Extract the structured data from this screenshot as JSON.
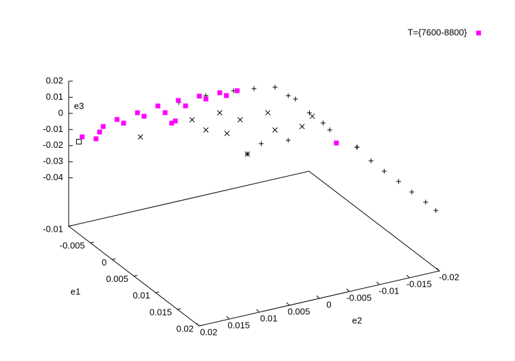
{
  "chart_data": {
    "type": "scatter3d",
    "xlabel": "e1",
    "ylabel": "e2",
    "zlabel": "e3",
    "xlim": [
      -0.01,
      0.02
    ],
    "xticks": [
      -0.01,
      -0.005,
      0,
      0.005,
      0.01,
      0.015,
      0.02
    ],
    "ylim": [
      -0.02,
      0.02
    ],
    "yticks": [
      0.02,
      0.015,
      0.01,
      0.005,
      0,
      -0.005,
      -0.01,
      -0.015,
      -0.02
    ],
    "zlim": [
      -0.07,
      0.02
    ],
    "zticks": [
      0.02,
      0.01,
      0,
      -0.01,
      -0.02,
      -0.03,
      -0.04
    ],
    "legend": "top-right",
    "series": [
      {
        "color": "#000000",
        "marker": "plus",
        "x": [
          -0.004,
          -0.004,
          -0.004,
          -0.004,
          -0.004,
          -0.004,
          -0.004,
          -0.004,
          -0.004,
          -0.004,
          0.005,
          0.005,
          0.005,
          0.02,
          0.02,
          0.02,
          0.02,
          0.02,
          0.02,
          0.02,
          0.005
        ],
        "y": [
          -0.01,
          -0.0065,
          -0.0031,
          0.0015,
          0.006,
          -0.0134,
          -0.0054,
          -0.0077,
          -0.0122,
          -0.018,
          -0.0092,
          -0.0057,
          -0.0126,
          -0.0194,
          -0.0154,
          -0.0108,
          -0.0132,
          -0.0177,
          -0.0086,
          -0.0063,
          -0.0171
        ],
        "z": [
          0.003,
          0.0051,
          0.0067,
          0.0076,
          0.0072,
          -0.0072,
          -0.0345,
          -0.03,
          -0.0318,
          -0.026,
          0.0064,
          0.02,
          -0.0071,
          -0.032,
          -0.0171,
          -0.0003,
          -0.0087,
          -0.0254,
          0.008,
          0.0185,
          -0.0217
        ]
      },
      {
        "color": "#000000",
        "marker": "cross",
        "x": [
          -0.004,
          -0.004,
          -0.004,
          -0.004,
          -0.004,
          -0.004,
          -0.004,
          -0.004,
          -0.004,
          -0.004,
          -0.004
        ],
        "y": [
          -0.002,
          -0.01,
          -0.0145,
          0.0015,
          -0.0042,
          0.0038,
          0.0124,
          -0.0088,
          -0.0008,
          -0.0162,
          -0.0054
        ],
        "z": [
          -0.0188,
          -0.0235,
          -0.0252,
          -0.0137,
          -0.0122,
          -0.0054,
          -0.0087,
          -0.0118,
          -0.005,
          -0.0203,
          -0.0345
        ]
      },
      {
        "color": "#000000",
        "marker": "box",
        "x": [
          -0.01
        ],
        "y": [
          0.0183
        ],
        "z": [
          -0.019
        ]
      },
      {
        "name": "T={7600-8800}",
        "color": "#ff00ff",
        "marker": "filled-square",
        "x": [
          -0.008,
          -0.008,
          -0.008,
          -0.008,
          -0.008,
          -0.008,
          -0.008,
          -0.008,
          -0.008,
          -0.008,
          -0.008,
          -0.008,
          -0.008,
          -0.008,
          -0.008,
          -0.008,
          -0.008,
          0.005,
          -0.008,
          -0.008
        ],
        "y": [
          0.0192,
          0.0169,
          0.0157,
          0.0134,
          0.01,
          0.0066,
          0.0032,
          -0.0003,
          -0.0037,
          -0.0066,
          0.0123,
          0.0089,
          0.0054,
          0.0037,
          0.002,
          -0.0014,
          -0.0048,
          -0.0137,
          0.0043,
          0.0163
        ],
        "z": [
          -0.0111,
          -0.0143,
          -0.0077,
          -0.0053,
          -0.004,
          -0.0027,
          -0.0022,
          -0.0025,
          -0.0033,
          -0.0045,
          -0.0085,
          -0.0071,
          -0.0079,
          -0.0145,
          -0.0066,
          -0.0052,
          -0.006,
          -0.0162,
          -0.0153,
          -0.0106
        ]
      }
    ]
  }
}
